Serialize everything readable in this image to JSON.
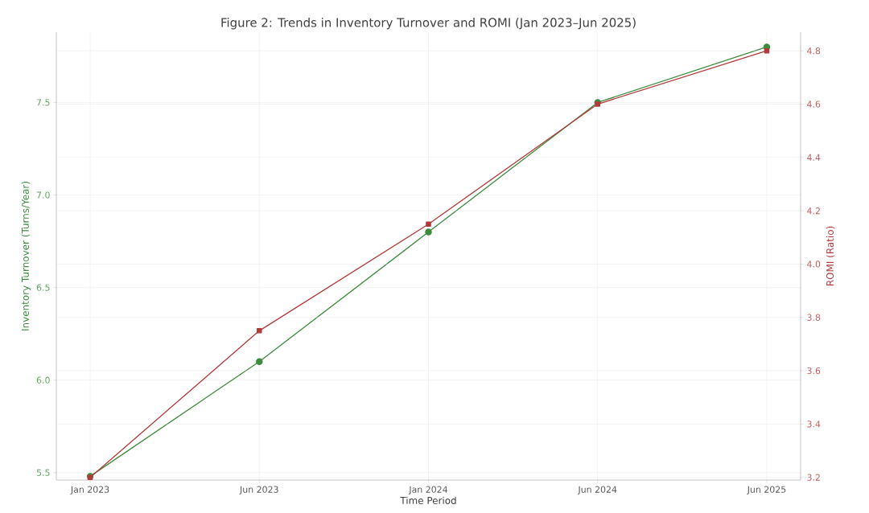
{
  "chart_data": {
    "type": "line",
    "title": "Figure 2: Trends in Inventory Turnover and ROMI (Jan 2023–Jun 2025)",
    "xlabel": "Time Period",
    "ylabel": "Inventory Turnover (Turns/Year)",
    "y2label": "ROMI (Ratio)",
    "categories": [
      "Jan 2023",
      "Jun 2023",
      "Jan 2024",
      "Jun 2024",
      "Jun 2025"
    ],
    "series": [
      {
        "color": "#3d8b3d",
        "values": [
          5.48,
          6.1,
          6.8,
          7.5,
          7.8
        ],
        "marker": "circle"
      },
      {
        "color": "#b23a3a",
        "values": [
          3.2,
          3.75,
          4.15,
          4.6,
          4.8
        ],
        "axis": "y2",
        "marker": "square"
      }
    ],
    "ylim": [
      5.46,
      7.88
    ],
    "yticks": [
      5.5,
      {
        "value": 6.0,
        "label": "6.0"
      },
      6.5,
      {
        "value": 7.0,
        "label": "7.0"
      },
      7.5
    ],
    "y2lim": [
      3.19,
      4.87
    ],
    "y2ticks": [
      3.2,
      3.4,
      3.6,
      3.8,
      {
        "value": 4.0,
        "label": "4.0"
      },
      4.2,
      4.4,
      4.6,
      4.8
    ],
    "grid": true,
    "line_style": "solid"
  }
}
